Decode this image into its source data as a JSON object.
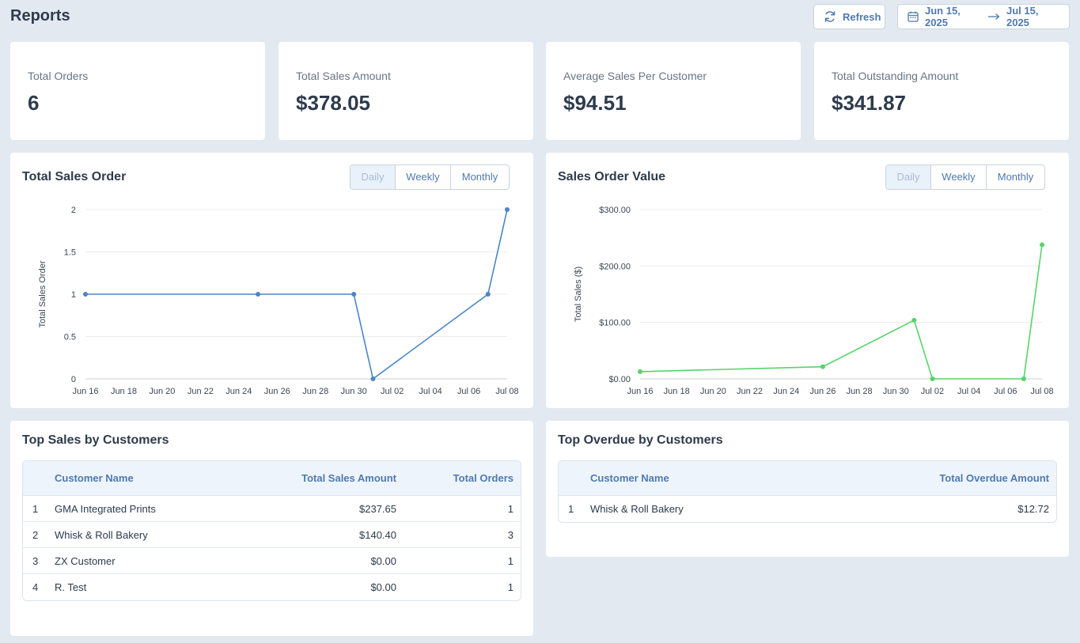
{
  "header": {
    "title": "Reports",
    "refresh_label": "Refresh",
    "date_start": "Jun 15, 2025",
    "date_end": "Jul 15, 2025"
  },
  "stats": [
    {
      "label": "Total Orders",
      "value": "6"
    },
    {
      "label": "Total Sales Amount",
      "value": "$378.05"
    },
    {
      "label": "Average Sales Per Customer",
      "value": "$94.51"
    },
    {
      "label": "Total Outstanding Amount",
      "value": "$341.87"
    }
  ],
  "range_options": [
    "Daily",
    "Weekly",
    "Monthly"
  ],
  "range_selected": "Daily",
  "chart_data": [
    {
      "type": "line",
      "title": "Total Sales Order",
      "ylabel": "Total Sales Order",
      "xlabel": "",
      "x_ticks": [
        "Jun 16",
        "Jun 18",
        "Jun 20",
        "Jun 22",
        "Jun 24",
        "Jun 26",
        "Jun 28",
        "Jun 30",
        "Jul 02",
        "Jul 04",
        "Jul 06",
        "Jul 08"
      ],
      "y_ticks": [
        "0",
        "0.5",
        "1",
        "1.5",
        "2"
      ],
      "ylim": [
        0,
        2
      ],
      "x": [
        "Jun 16",
        "Jun 25",
        "Jun 30",
        "Jul 01",
        "Jul 07",
        "Jul 08"
      ],
      "values": [
        1,
        1,
        1,
        0,
        1,
        2
      ],
      "color": "#4a86c8",
      "grid": true
    },
    {
      "type": "line",
      "title": "Sales Order Value",
      "ylabel": "Total Sales ($)",
      "xlabel": "",
      "x_ticks": [
        "Jun 16",
        "Jun 18",
        "Jun 20",
        "Jun 22",
        "Jun 24",
        "Jun 26",
        "Jun 28",
        "Jun 30",
        "Jul 02",
        "Jul 04",
        "Jul 06",
        "Jul 08"
      ],
      "y_ticks": [
        "$0.00",
        "$100.00",
        "$200.00",
        "$300.00"
      ],
      "ylim": [
        0,
        300
      ],
      "x": [
        "Jun 16",
        "Jun 26",
        "Jul 01",
        "Jul 02",
        "Jul 07",
        "Jul 08"
      ],
      "values": [
        12.72,
        21.5,
        104,
        0,
        0,
        237.65
      ],
      "color": "#55d46a",
      "grid": true
    }
  ],
  "top_sales": {
    "title": "Top Sales by Customers",
    "columns": [
      "Customer Name",
      "Total Sales Amount",
      "Total Orders"
    ],
    "rows": [
      {
        "idx": "1",
        "name": "GMA Integrated Prints",
        "amount": "$237.65",
        "orders": "1"
      },
      {
        "idx": "2",
        "name": "Whisk & Roll Bakery",
        "amount": "$140.40",
        "orders": "3"
      },
      {
        "idx": "3",
        "name": "ZX Customer",
        "amount": "$0.00",
        "orders": "1"
      },
      {
        "idx": "4",
        "name": "R. Test",
        "amount": "$0.00",
        "orders": "1"
      }
    ]
  },
  "top_overdue": {
    "title": "Top Overdue by Customers",
    "columns": [
      "Customer Name",
      "Total Overdue Amount"
    ],
    "rows": [
      {
        "idx": "1",
        "name": "Whisk & Roll Bakery",
        "amount": "$12.72"
      }
    ]
  }
}
